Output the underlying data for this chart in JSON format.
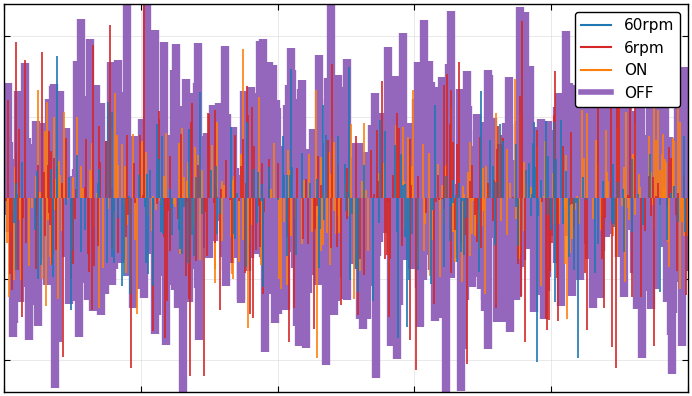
{
  "legend_labels": [
    "60rpm",
    "6rpm",
    "ON",
    "OFF"
  ],
  "legend_colors": [
    "#1f77b4",
    "#d62728",
    "#ff7f0e",
    "#9467bd"
  ],
  "xlim": [
    0,
    1000
  ],
  "ylim": [
    -1.2,
    1.2
  ],
  "n_points": 1000,
  "background": "#ffffff",
  "off_lw": 6.0,
  "other_lw": 1.2
}
